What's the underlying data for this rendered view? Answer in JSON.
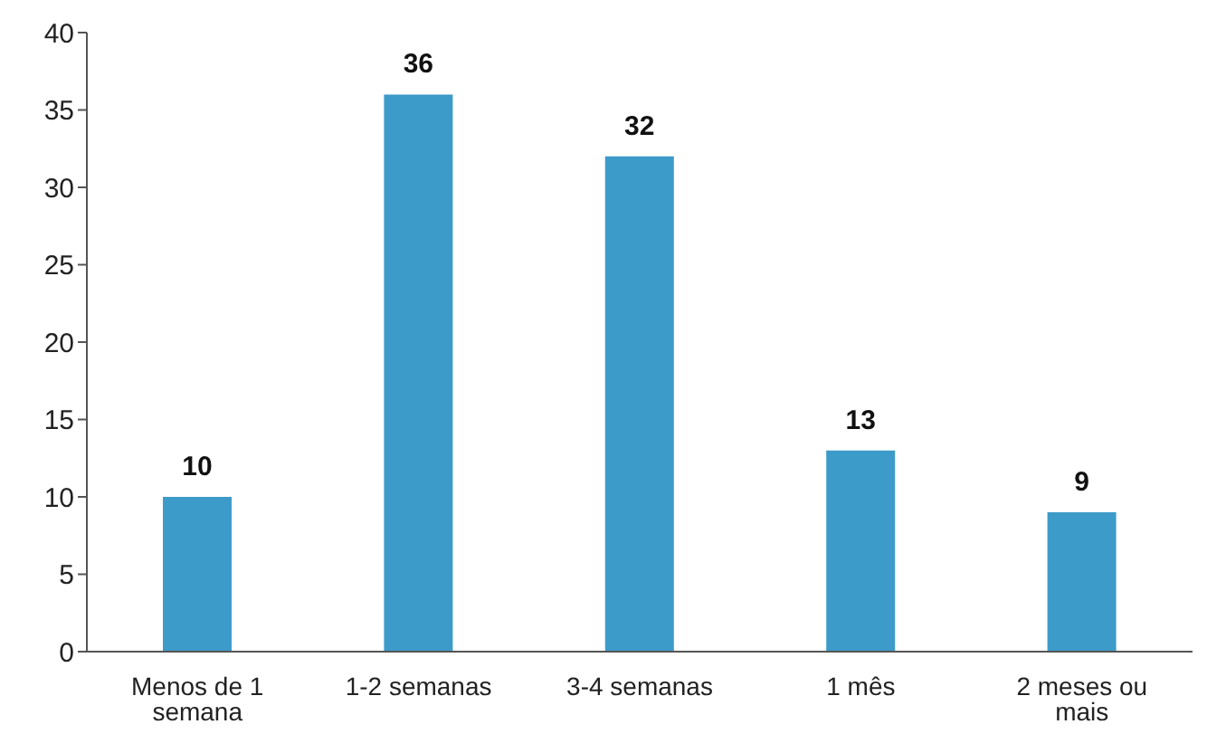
{
  "chart_data": {
    "type": "bar",
    "categories": [
      "Menos de 1 semana",
      "1-2 semanas",
      "3-4 semanas",
      "1 mês",
      "2 meses ou mais"
    ],
    "values": [
      10,
      36,
      32,
      13,
      9
    ],
    "color": "#3d9bc9",
    "ylim": [
      0,
      40
    ],
    "yticks": [
      0,
      5,
      10,
      15,
      20,
      25,
      30,
      35,
      40
    ],
    "grid": false,
    "data_labels": true
  }
}
